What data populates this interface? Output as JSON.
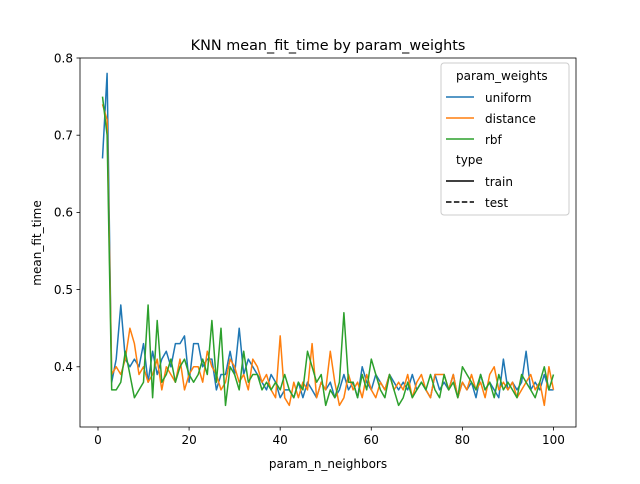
{
  "chart_data": {
    "type": "line",
    "title": "KNN mean_fit_time by param_weights",
    "xlabel": "param_n_neighbors",
    "ylabel": "mean_fit_time",
    "xlim": [
      -3.95,
      104.95
    ],
    "ylim": [
      0.322,
      0.8
    ],
    "xticks": [
      0,
      20,
      40,
      60,
      80,
      100
    ],
    "yticks": [
      0.4,
      0.5,
      0.6,
      0.7,
      0.8
    ],
    "grid": false,
    "legend": {
      "placement": "top-right",
      "hue_title": "param_weights",
      "style_title": "type",
      "style_entries": [
        {
          "label": "train",
          "dash": "solid"
        },
        {
          "label": "test",
          "dash": "dashed"
        }
      ]
    },
    "x": [
      1,
      2,
      3,
      4,
      5,
      6,
      7,
      8,
      9,
      10,
      11,
      12,
      13,
      14,
      15,
      16,
      17,
      18,
      19,
      20,
      21,
      22,
      23,
      24,
      25,
      26,
      27,
      28,
      29,
      30,
      31,
      32,
      33,
      34,
      35,
      36,
      37,
      38,
      39,
      40,
      41,
      42,
      43,
      44,
      45,
      46,
      47,
      48,
      49,
      50,
      51,
      52,
      53,
      54,
      55,
      56,
      57,
      58,
      59,
      60,
      61,
      62,
      63,
      64,
      65,
      66,
      67,
      68,
      69,
      70,
      71,
      72,
      73,
      74,
      75,
      76,
      77,
      78,
      79,
      80,
      81,
      82,
      83,
      84,
      85,
      86,
      87,
      88,
      89,
      90,
      91,
      92,
      93,
      94,
      95,
      96,
      97,
      98,
      99,
      100
    ],
    "series": [
      {
        "name": "uniform",
        "color": "#1f77b4",
        "values": [
          0.67,
          0.78,
          0.38,
          0.41,
          0.48,
          0.41,
          0.4,
          0.41,
          0.4,
          0.43,
          0.38,
          0.42,
          0.39,
          0.41,
          0.42,
          0.4,
          0.43,
          0.43,
          0.44,
          0.38,
          0.43,
          0.43,
          0.4,
          0.41,
          0.41,
          0.37,
          0.39,
          0.39,
          0.42,
          0.39,
          0.45,
          0.39,
          0.41,
          0.4,
          0.39,
          0.38,
          0.37,
          0.39,
          0.38,
          0.36,
          0.37,
          0.37,
          0.36,
          0.38,
          0.36,
          0.38,
          0.37,
          0.36,
          0.38,
          0.37,
          0.38,
          0.36,
          0.37,
          0.39,
          0.37,
          0.38,
          0.36,
          0.4,
          0.38,
          0.37,
          0.39,
          0.38,
          0.37,
          0.39,
          0.38,
          0.37,
          0.38,
          0.37,
          0.39,
          0.37,
          0.38,
          0.37,
          0.36,
          0.39,
          0.37,
          0.38,
          0.37,
          0.39,
          0.36,
          0.38,
          0.37,
          0.38,
          0.36,
          0.39,
          0.37,
          0.38,
          0.37,
          0.36,
          0.41,
          0.37,
          0.38,
          0.37,
          0.38,
          0.42,
          0.37,
          0.38,
          0.37,
          0.39,
          0.37,
          0.37
        ]
      },
      {
        "name": "distance",
        "color": "#ff7f0e",
        "values": [
          0.74,
          0.72,
          0.39,
          0.4,
          0.39,
          0.41,
          0.45,
          0.43,
          0.39,
          0.4,
          0.38,
          0.39,
          0.41,
          0.37,
          0.4,
          0.39,
          0.38,
          0.41,
          0.37,
          0.39,
          0.4,
          0.4,
          0.38,
          0.42,
          0.4,
          0.39,
          0.37,
          0.38,
          0.41,
          0.4,
          0.38,
          0.39,
          0.37,
          0.41,
          0.4,
          0.38,
          0.39,
          0.37,
          0.36,
          0.44,
          0.36,
          0.35,
          0.38,
          0.36,
          0.38,
          0.37,
          0.43,
          0.36,
          0.38,
          0.37,
          0.42,
          0.38,
          0.35,
          0.36,
          0.39,
          0.37,
          0.38,
          0.36,
          0.39,
          0.37,
          0.36,
          0.38,
          0.37,
          0.39,
          0.37,
          0.38,
          0.37,
          0.39,
          0.36,
          0.38,
          0.39,
          0.37,
          0.36,
          0.39,
          0.39,
          0.39,
          0.37,
          0.39,
          0.36,
          0.38,
          0.37,
          0.39,
          0.37,
          0.38,
          0.36,
          0.39,
          0.4,
          0.37,
          0.38,
          0.37,
          0.38,
          0.36,
          0.37,
          0.38,
          0.39,
          0.37,
          0.38,
          0.35,
          0.4,
          0.37
        ]
      },
      {
        "name": "rbf",
        "color": "#2ca02c",
        "values": [
          0.75,
          0.7,
          0.37,
          0.37,
          0.38,
          0.42,
          0.39,
          0.36,
          0.37,
          0.38,
          0.48,
          0.36,
          0.46,
          0.38,
          0.39,
          0.41,
          0.38,
          0.4,
          0.41,
          0.39,
          0.38,
          0.39,
          0.41,
          0.39,
          0.46,
          0.38,
          0.45,
          0.35,
          0.4,
          0.39,
          0.37,
          0.42,
          0.38,
          0.39,
          0.39,
          0.37,
          0.38,
          0.37,
          0.38,
          0.37,
          0.39,
          0.37,
          0.36,
          0.38,
          0.37,
          0.42,
          0.4,
          0.38,
          0.39,
          0.35,
          0.37,
          0.36,
          0.38,
          0.47,
          0.38,
          0.38,
          0.36,
          0.39,
          0.37,
          0.41,
          0.39,
          0.37,
          0.36,
          0.39,
          0.37,
          0.35,
          0.36,
          0.38,
          0.36,
          0.37,
          0.38,
          0.37,
          0.39,
          0.37,
          0.36,
          0.39,
          0.37,
          0.38,
          0.36,
          0.4,
          0.39,
          0.38,
          0.37,
          0.39,
          0.37,
          0.38,
          0.36,
          0.39,
          0.37,
          0.38,
          0.37,
          0.36,
          0.39,
          0.38,
          0.37,
          0.36,
          0.38,
          0.4,
          0.37,
          0.39
        ]
      }
    ]
  }
}
